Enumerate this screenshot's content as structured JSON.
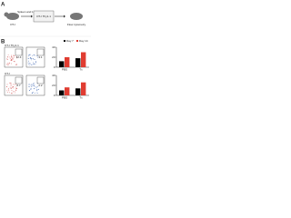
{
  "panel_a": {
    "label": "A",
    "donor": "OT-I",
    "source": "Spleen and LN",
    "transfer": "OT-I Thy1.1",
    "readout": "Flow cytometry"
  },
  "panel_b": {
    "label": "B",
    "rows": [
      {
        "name": "OT-I Thy1.1",
        "gates": [
          "12.4",
          "3.1"
        ],
        "chart": {
          "categories": [
            "PBS",
            "Tx"
          ],
          "series": [
            {
              "name": "Day 7",
              "color": "#000000",
              "values": [
                12,
                18
              ]
            },
            {
              "name": "Day 14",
              "color": "#e03c31",
              "values": [
                20,
                30
              ]
            }
          ],
          "ylim": [
            0,
            40
          ],
          "yticks": [
            0,
            20,
            40
          ]
        }
      },
      {
        "name": "OT-I",
        "gates": [
          "8.7",
          "2.2"
        ],
        "chart": {
          "categories": [
            "PBS",
            "Tx"
          ],
          "series": [
            {
              "name": "Day 7",
              "color": "#000000",
              "values": [
                10,
                14
              ]
            },
            {
              "name": "Day 14",
              "color": "#e03c31",
              "values": [
                16,
                26
              ]
            }
          ],
          "ylim": [
            0,
            40
          ],
          "yticks": [
            0,
            20,
            40
          ]
        }
      }
    ]
  }
}
